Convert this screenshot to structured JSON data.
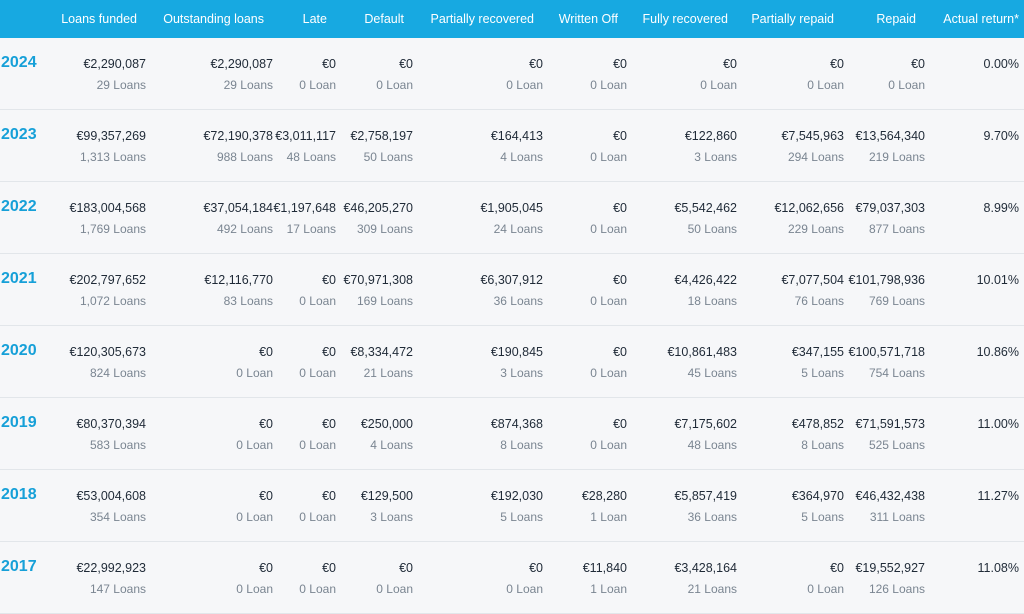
{
  "columns": [
    "Loans funded",
    "Outstanding loans",
    "Late",
    "Default",
    "Partially recovered",
    "Written Off",
    "Fully recovered",
    "Partially repaid",
    "Repaid",
    "Actual return*"
  ],
  "rows": [
    {
      "year": "2024",
      "cells": [
        [
          "€2,290,087",
          "29 Loans"
        ],
        [
          "€2,290,087",
          "29 Loans"
        ],
        [
          "€0",
          "0 Loan"
        ],
        [
          "€0",
          "0 Loan"
        ],
        [
          "€0",
          "0 Loan"
        ],
        [
          "€0",
          "0 Loan"
        ],
        [
          "€0",
          "0 Loan"
        ],
        [
          "€0",
          "0 Loan"
        ],
        [
          "€0",
          "0 Loan"
        ]
      ],
      "return": "0.00%"
    },
    {
      "year": "2023",
      "cells": [
        [
          "€99,357,269",
          "1,313 Loans"
        ],
        [
          "€72,190,378",
          "988 Loans"
        ],
        [
          "€3,011,117",
          "48 Loans"
        ],
        [
          "€2,758,197",
          "50 Loans"
        ],
        [
          "€164,413",
          "4 Loans"
        ],
        [
          "€0",
          "0 Loan"
        ],
        [
          "€122,860",
          "3 Loans"
        ],
        [
          "€7,545,963",
          "294 Loans"
        ],
        [
          "€13,564,340",
          "219 Loans"
        ]
      ],
      "return": "9.70%"
    },
    {
      "year": "2022",
      "cells": [
        [
          "€183,004,568",
          "1,769 Loans"
        ],
        [
          "€37,054,184",
          "492 Loans"
        ],
        [
          "€1,197,648",
          "17 Loans"
        ],
        [
          "€46,205,270",
          "309 Loans"
        ],
        [
          "€1,905,045",
          "24 Loans"
        ],
        [
          "€0",
          "0 Loan"
        ],
        [
          "€5,542,462",
          "50 Loans"
        ],
        [
          "€12,062,656",
          "229 Loans"
        ],
        [
          "€79,037,303",
          "877 Loans"
        ]
      ],
      "return": "8.99%"
    },
    {
      "year": "2021",
      "cells": [
        [
          "€202,797,652",
          "1,072 Loans"
        ],
        [
          "€12,116,770",
          "83 Loans"
        ],
        [
          "€0",
          "0 Loan"
        ],
        [
          "€70,971,308",
          "169 Loans"
        ],
        [
          "€6,307,912",
          "36 Loans"
        ],
        [
          "€0",
          "0 Loan"
        ],
        [
          "€4,426,422",
          "18 Loans"
        ],
        [
          "€7,077,504",
          "76 Loans"
        ],
        [
          "€101,798,936",
          "769 Loans"
        ]
      ],
      "return": "10.01%"
    },
    {
      "year": "2020",
      "cells": [
        [
          "€120,305,673",
          "824 Loans"
        ],
        [
          "€0",
          "0 Loan"
        ],
        [
          "€0",
          "0 Loan"
        ],
        [
          "€8,334,472",
          "21 Loans"
        ],
        [
          "€190,845",
          "3 Loans"
        ],
        [
          "€0",
          "0 Loan"
        ],
        [
          "€10,861,483",
          "45 Loans"
        ],
        [
          "€347,155",
          "5 Loans"
        ],
        [
          "€100,571,718",
          "754 Loans"
        ]
      ],
      "return": "10.86%"
    },
    {
      "year": "2019",
      "cells": [
        [
          "€80,370,394",
          "583 Loans"
        ],
        [
          "€0",
          "0 Loan"
        ],
        [
          "€0",
          "0 Loan"
        ],
        [
          "€250,000",
          "4 Loans"
        ],
        [
          "€874,368",
          "8 Loans"
        ],
        [
          "€0",
          "0 Loan"
        ],
        [
          "€7,175,602",
          "48 Loans"
        ],
        [
          "€478,852",
          "8 Loans"
        ],
        [
          "€71,591,573",
          "525 Loans"
        ]
      ],
      "return": "11.00%"
    },
    {
      "year": "2018",
      "cells": [
        [
          "€53,004,608",
          "354 Loans"
        ],
        [
          "€0",
          "0 Loan"
        ],
        [
          "€0",
          "0 Loan"
        ],
        [
          "€129,500",
          "3 Loans"
        ],
        [
          "€192,030",
          "5 Loans"
        ],
        [
          "€28,280",
          "1 Loan"
        ],
        [
          "€5,857,419",
          "36 Loans"
        ],
        [
          "€364,970",
          "5 Loans"
        ],
        [
          "€46,432,438",
          "311 Loans"
        ]
      ],
      "return": "11.27%"
    },
    {
      "year": "2017",
      "cells": [
        [
          "€22,992,923",
          "147 Loans"
        ],
        [
          "€0",
          "0 Loan"
        ],
        [
          "€0",
          "0 Loan"
        ],
        [
          "€0",
          "0 Loan"
        ],
        [
          "€0",
          "0 Loan"
        ],
        [
          "€11,840",
          "1 Loan"
        ],
        [
          "€3,428,164",
          "21 Loans"
        ],
        [
          "€0",
          "0 Loan"
        ],
        [
          "€19,552,927",
          "126 Loans"
        ]
      ],
      "return": "11.08%"
    }
  ]
}
